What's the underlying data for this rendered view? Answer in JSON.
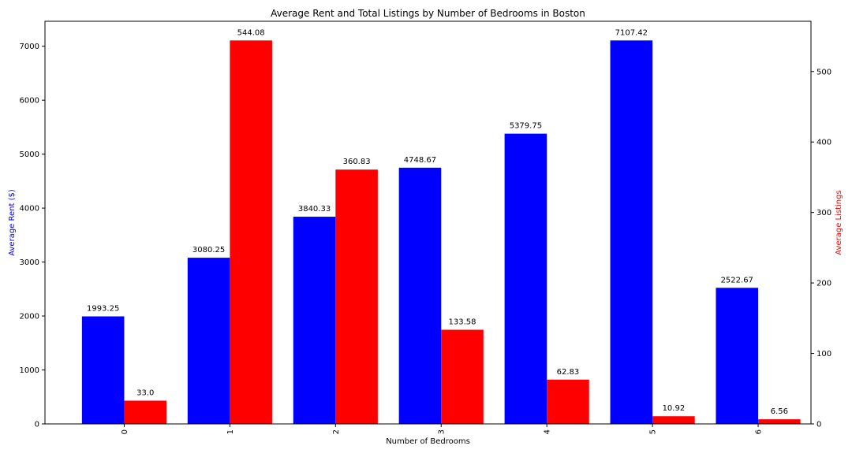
{
  "chart_data": {
    "type": "bar",
    "title": "Average Rent and Total Listings by Number of Bedrooms in Boston",
    "xlabel": "Number of Bedrooms",
    "ylabel_left": "Average Rent ($)",
    "ylabel_right": "Average Listings",
    "categories": [
      "0",
      "1",
      "2",
      "3",
      "4",
      "5",
      "6"
    ],
    "series": [
      {
        "axis": "left",
        "color": "#0000ff",
        "values": [
          1993.25,
          3080.25,
          3840.33,
          4748.67,
          5379.75,
          7107.42,
          2522.67
        ],
        "labels": [
          "1993.25",
          "3080.25",
          "3840.33",
          "4748.67",
          "5379.75",
          "7107.42",
          "2522.67"
        ]
      },
      {
        "axis": "right",
        "color": "#ff0000",
        "values": [
          33.0,
          544.08,
          360.83,
          133.58,
          62.83,
          10.92,
          6.56
        ],
        "labels": [
          "33.0",
          "544.08",
          "360.83",
          "133.58",
          "62.83",
          "10.92",
          "6.56"
        ]
      }
    ],
    "ylim_left": [
      0,
      7462.79
    ],
    "ylim_right": [
      0,
      571.28
    ],
    "yticks_left": [
      "0",
      "1000",
      "2000",
      "3000",
      "4000",
      "5000",
      "6000",
      "7000"
    ],
    "yticks_right": [
      "0",
      "100",
      "200",
      "300",
      "400",
      "500"
    ],
    "grid": false,
    "legend": "none"
  }
}
